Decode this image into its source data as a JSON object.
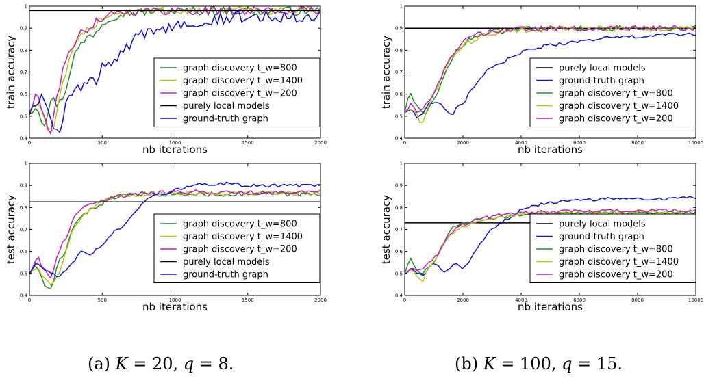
{
  "captions": {
    "a": {
      "prefix": "(a) ",
      "k_sym": "K",
      "k_eq": " = 20, ",
      "q_sym": "q",
      "q_eq": " = 8."
    },
    "b": {
      "prefix": "(b) ",
      "k_sym": "K",
      "k_eq": " = 100, ",
      "q_sym": "q",
      "q_eq": " = 15."
    }
  },
  "colors": {
    "graph discovery t_w=800": "#238b23",
    "graph discovery t_w=1400": "#b5c214",
    "graph discovery t_w=200": "#c21cc2",
    "purely local models": "#000000",
    "ground-truth graph": "#1010d0"
  },
  "chart_data": [
    {
      "id": "a_train",
      "type": "line",
      "xlabel": "nb iterations",
      "ylabel": "train accuracy",
      "xlim": [
        0,
        2000
      ],
      "ylim": [
        0.4,
        1.0
      ],
      "xticks": [
        0,
        500,
        1000,
        1500,
        2000
      ],
      "yticks": [
        0.4,
        0.5,
        0.6,
        0.7,
        0.8,
        0.9,
        1.0
      ],
      "legend_position": "lower-right",
      "legend_order": [
        "graph discovery t_w=800",
        "graph discovery t_w=1400",
        "graph discovery t_w=200",
        "purely local models",
        "ground-truth graph"
      ],
      "series": [
        {
          "name": "graph discovery t_w=800",
          "x": [
            0,
            50,
            100,
            150,
            200,
            250,
            300,
            350,
            400,
            450,
            500,
            550,
            600,
            650,
            700,
            800,
            900,
            1000,
            2000
          ],
          "y": [
            0.52,
            0.55,
            0.46,
            0.58,
            0.55,
            0.62,
            0.77,
            0.82,
            0.86,
            0.88,
            0.92,
            0.95,
            0.96,
            0.97,
            0.97,
            0.975,
            0.978,
            0.978,
            0.978
          ],
          "jitter": 0.02
        },
        {
          "name": "graph discovery t_w=1400",
          "x": [
            0,
            50,
            100,
            150,
            200,
            250,
            300,
            350,
            400,
            450,
            500,
            550,
            600,
            650,
            700,
            800,
            1000,
            2000
          ],
          "y": [
            0.52,
            0.57,
            0.5,
            0.4,
            0.55,
            0.7,
            0.8,
            0.86,
            0.89,
            0.92,
            0.95,
            0.96,
            0.97,
            0.975,
            0.978,
            0.979,
            0.98,
            0.98
          ],
          "jitter": 0.02
        },
        {
          "name": "graph discovery t_w=200",
          "x": [
            0,
            50,
            100,
            150,
            200,
            250,
            300,
            350,
            400,
            450,
            500,
            550,
            600,
            650,
            700,
            800,
            1000,
            2000
          ],
          "y": [
            0.52,
            0.6,
            0.5,
            0.42,
            0.62,
            0.77,
            0.82,
            0.87,
            0.9,
            0.93,
            0.95,
            0.965,
            0.972,
            0.975,
            0.977,
            0.978,
            0.98,
            0.98
          ],
          "jitter": 0.02
        },
        {
          "name": "purely local models",
          "x": [
            0,
            2000
          ],
          "y": [
            0.98,
            0.98
          ],
          "jitter": 0
        },
        {
          "name": "ground-truth graph",
          "x": [
            0,
            50,
            100,
            150,
            200,
            250,
            300,
            350,
            400,
            450,
            500,
            550,
            600,
            650,
            700,
            750,
            800,
            900,
            1000,
            1100,
            1200,
            1300,
            1400,
            1500,
            1600,
            1700,
            1800,
            1900,
            2000
          ],
          "y": [
            0.52,
            0.56,
            0.6,
            0.5,
            0.4,
            0.55,
            0.6,
            0.63,
            0.65,
            0.65,
            0.73,
            0.72,
            0.76,
            0.8,
            0.83,
            0.86,
            0.87,
            0.9,
            0.91,
            0.93,
            0.94,
            0.945,
            0.95,
            0.952,
            0.955,
            0.955,
            0.958,
            0.96,
            0.965
          ],
          "jitter": 0.03
        }
      ]
    },
    {
      "id": "a_test",
      "type": "line",
      "xlabel": "nb iterations",
      "ylabel": "test accuracy",
      "xlim": [
        0,
        2000
      ],
      "ylim": [
        0.4,
        1.0
      ],
      "xticks": [
        0,
        500,
        1000,
        1500,
        2000
      ],
      "yticks": [
        0.4,
        0.5,
        0.6,
        0.7,
        0.8,
        0.9,
        1.0
      ],
      "legend_position": "lower-right",
      "legend_order": [
        "graph discovery t_w=800",
        "graph discovery t_w=1400",
        "graph discovery t_w=200",
        "purely local models",
        "ground-truth graph"
      ],
      "series": [
        {
          "name": "graph discovery t_w=800",
          "x": [
            0,
            50,
            100,
            150,
            200,
            250,
            300,
            350,
            400,
            450,
            500,
            550,
            600,
            700,
            800,
            1000,
            1500,
            2000
          ],
          "y": [
            0.5,
            0.54,
            0.45,
            0.42,
            0.55,
            0.6,
            0.72,
            0.76,
            0.78,
            0.8,
            0.82,
            0.84,
            0.85,
            0.855,
            0.86,
            0.86,
            0.86,
            0.86
          ],
          "jitter": 0.01
        },
        {
          "name": "graph discovery t_w=1400",
          "x": [
            0,
            50,
            100,
            150,
            200,
            250,
            300,
            350,
            400,
            450,
            500,
            550,
            600,
            700,
            800,
            1000,
            1500,
            2000
          ],
          "y": [
            0.5,
            0.53,
            0.48,
            0.45,
            0.5,
            0.6,
            0.7,
            0.75,
            0.78,
            0.8,
            0.82,
            0.84,
            0.85,
            0.855,
            0.86,
            0.865,
            0.865,
            0.865
          ],
          "jitter": 0.01
        },
        {
          "name": "graph discovery t_w=200",
          "x": [
            0,
            50,
            100,
            150,
            200,
            250,
            300,
            350,
            400,
            450,
            500,
            550,
            600,
            700,
            800,
            1000,
            1500,
            2000
          ],
          "y": [
            0.5,
            0.58,
            0.52,
            0.47,
            0.6,
            0.66,
            0.75,
            0.79,
            0.81,
            0.82,
            0.83,
            0.845,
            0.85,
            0.86,
            0.865,
            0.87,
            0.87,
            0.87
          ],
          "jitter": 0.01
        },
        {
          "name": "purely local models",
          "x": [
            0,
            2000
          ],
          "y": [
            0.825,
            0.825
          ],
          "jitter": 0
        },
        {
          "name": "ground-truth graph",
          "x": [
            0,
            50,
            100,
            150,
            200,
            250,
            300,
            350,
            400,
            450,
            500,
            550,
            600,
            650,
            700,
            750,
            800,
            900,
            1000,
            1100,
            1200,
            1300,
            1400,
            1500,
            1600,
            1700,
            1800,
            1900,
            2000
          ],
          "y": [
            0.5,
            0.55,
            0.52,
            0.5,
            0.48,
            0.52,
            0.55,
            0.6,
            0.58,
            0.6,
            0.63,
            0.67,
            0.7,
            0.72,
            0.75,
            0.8,
            0.84,
            0.86,
            0.88,
            0.895,
            0.905,
            0.91,
            0.905,
            0.9,
            0.9,
            0.9,
            0.9,
            0.9,
            0.9
          ],
          "jitter": 0.008
        }
      ]
    },
    {
      "id": "b_train",
      "type": "line",
      "xlabel": "nb iterations",
      "ylabel": "train accuracy",
      "xlim": [
        0,
        10000
      ],
      "ylim": [
        0.4,
        1.0
      ],
      "xticks": [
        0,
        2000,
        4000,
        6000,
        8000,
        10000
      ],
      "yticks": [
        0.4,
        0.5,
        0.6,
        0.7,
        0.8,
        0.9,
        1.0
      ],
      "legend_position": "lower-right",
      "legend_order": [
        "purely local models",
        "ground-truth graph",
        "graph discovery t_w=800",
        "graph discovery t_w=1400",
        "graph discovery t_w=200"
      ],
      "series": [
        {
          "name": "purely local models",
          "x": [
            0,
            10000
          ],
          "y": [
            0.9,
            0.9
          ],
          "jitter": 0
        },
        {
          "name": "ground-truth graph",
          "x": [
            0,
            200,
            400,
            600,
            800,
            1000,
            1200,
            1400,
            1600,
            1800,
            2000,
            2200,
            2400,
            2600,
            2800,
            3000,
            3200,
            3400,
            3600,
            3800,
            4000,
            4500,
            5000,
            5500,
            6000,
            6500,
            7000,
            7500,
            8000,
            8500,
            9000,
            9500,
            10000
          ],
          "y": [
            0.52,
            0.53,
            0.5,
            0.5,
            0.55,
            0.57,
            0.56,
            0.52,
            0.5,
            0.54,
            0.55,
            0.6,
            0.64,
            0.67,
            0.7,
            0.72,
            0.73,
            0.75,
            0.76,
            0.77,
            0.79,
            0.81,
            0.825,
            0.83,
            0.84,
            0.85,
            0.855,
            0.86,
            0.86,
            0.865,
            0.87,
            0.87,
            0.875
          ],
          "jitter": 0.008
        },
        {
          "name": "graph discovery t_w=800",
          "x": [
            0,
            200,
            400,
            600,
            800,
            1000,
            1200,
            1400,
            1600,
            1800,
            2000,
            2400,
            2800,
            3200,
            3600,
            4000,
            5000,
            6000,
            8000,
            10000
          ],
          "y": [
            0.52,
            0.61,
            0.55,
            0.5,
            0.53,
            0.58,
            0.63,
            0.7,
            0.76,
            0.8,
            0.83,
            0.86,
            0.875,
            0.885,
            0.89,
            0.895,
            0.898,
            0.9,
            0.9,
            0.9
          ],
          "jitter": 0.012
        },
        {
          "name": "graph discovery t_w=1400",
          "x": [
            0,
            200,
            400,
            600,
            800,
            1000,
            1200,
            1400,
            1600,
            1800,
            2000,
            2400,
            2800,
            3200,
            3600,
            4000,
            5000,
            6000,
            8000,
            10000
          ],
          "y": [
            0.52,
            0.54,
            0.52,
            0.45,
            0.55,
            0.6,
            0.66,
            0.73,
            0.77,
            0.8,
            0.82,
            0.85,
            0.87,
            0.88,
            0.885,
            0.89,
            0.895,
            0.9,
            0.9,
            0.9
          ],
          "jitter": 0.012
        },
        {
          "name": "graph discovery t_w=200",
          "x": [
            0,
            200,
            400,
            600,
            800,
            1000,
            1200,
            1400,
            1600,
            1800,
            2000,
            2400,
            2800,
            3200,
            3600,
            4000,
            5000,
            6000,
            8000,
            10000
          ],
          "y": [
            0.52,
            0.55,
            0.53,
            0.52,
            0.56,
            0.6,
            0.66,
            0.72,
            0.77,
            0.81,
            0.84,
            0.865,
            0.88,
            0.89,
            0.893,
            0.895,
            0.898,
            0.9,
            0.9,
            0.9
          ],
          "jitter": 0.012
        }
      ]
    },
    {
      "id": "b_test",
      "type": "line",
      "xlabel": "nb iterations",
      "ylabel": "test accuracy",
      "xlim": [
        0,
        10000
      ],
      "ylim": [
        0.4,
        1.0
      ],
      "xticks": [
        0,
        2000,
        4000,
        6000,
        8000,
        10000
      ],
      "yticks": [
        0.4,
        0.5,
        0.6,
        0.7,
        0.8,
        0.9,
        1.0
      ],
      "legend_position": "lower-right",
      "legend_order": [
        "purely local models",
        "ground-truth graph",
        "graph discovery t_w=800",
        "graph discovery t_w=1400",
        "graph discovery t_w=200"
      ],
      "series": [
        {
          "name": "purely local models",
          "x": [
            0,
            10000
          ],
          "y": [
            0.73,
            0.73
          ],
          "jitter": 0
        },
        {
          "name": "ground-truth graph",
          "x": [
            0,
            200,
            400,
            600,
            800,
            1000,
            1200,
            1400,
            1600,
            1800,
            2000,
            2200,
            2400,
            2600,
            2800,
            3000,
            3200,
            3400,
            3600,
            3800,
            4000,
            4500,
            5000,
            5500,
            6000,
            6500,
            7000,
            7500,
            8000,
            8500,
            9000,
            9500,
            10000
          ],
          "y": [
            0.5,
            0.52,
            0.5,
            0.49,
            0.52,
            0.55,
            0.53,
            0.5,
            0.53,
            0.55,
            0.52,
            0.55,
            0.6,
            0.64,
            0.67,
            0.7,
            0.72,
            0.74,
            0.75,
            0.77,
            0.79,
            0.81,
            0.82,
            0.83,
            0.835,
            0.835,
            0.84,
            0.84,
            0.84,
            0.84,
            0.84,
            0.845,
            0.845
          ],
          "jitter": 0.006
        },
        {
          "name": "graph discovery t_w=800",
          "x": [
            0,
            200,
            400,
            600,
            800,
            1000,
            1200,
            1400,
            1600,
            1800,
            2000,
            2400,
            2800,
            3200,
            3600,
            4000,
            5000,
            6000,
            8000,
            10000
          ],
          "y": [
            0.5,
            0.57,
            0.52,
            0.5,
            0.53,
            0.55,
            0.6,
            0.66,
            0.7,
            0.72,
            0.73,
            0.74,
            0.75,
            0.755,
            0.76,
            0.765,
            0.77,
            0.775,
            0.775,
            0.775
          ],
          "jitter": 0.008
        },
        {
          "name": "graph discovery t_w=1400",
          "x": [
            0,
            200,
            400,
            600,
            800,
            1000,
            1200,
            1400,
            1600,
            1800,
            2000,
            2400,
            2800,
            3200,
            3600,
            4000,
            5000,
            6000,
            8000,
            10000
          ],
          "y": [
            0.5,
            0.52,
            0.5,
            0.46,
            0.52,
            0.55,
            0.6,
            0.65,
            0.68,
            0.7,
            0.71,
            0.73,
            0.745,
            0.755,
            0.76,
            0.77,
            0.775,
            0.78,
            0.78,
            0.78
          ],
          "jitter": 0.008
        },
        {
          "name": "graph discovery t_w=200",
          "x": [
            0,
            200,
            400,
            600,
            800,
            1000,
            1200,
            1400,
            1600,
            1800,
            2000,
            2400,
            2800,
            3200,
            3600,
            4000,
            5000,
            6000,
            8000,
            10000
          ],
          "y": [
            0.5,
            0.53,
            0.51,
            0.52,
            0.55,
            0.57,
            0.6,
            0.65,
            0.69,
            0.71,
            0.72,
            0.74,
            0.755,
            0.765,
            0.77,
            0.775,
            0.78,
            0.785,
            0.785,
            0.785
          ],
          "jitter": 0.008
        }
      ]
    }
  ]
}
